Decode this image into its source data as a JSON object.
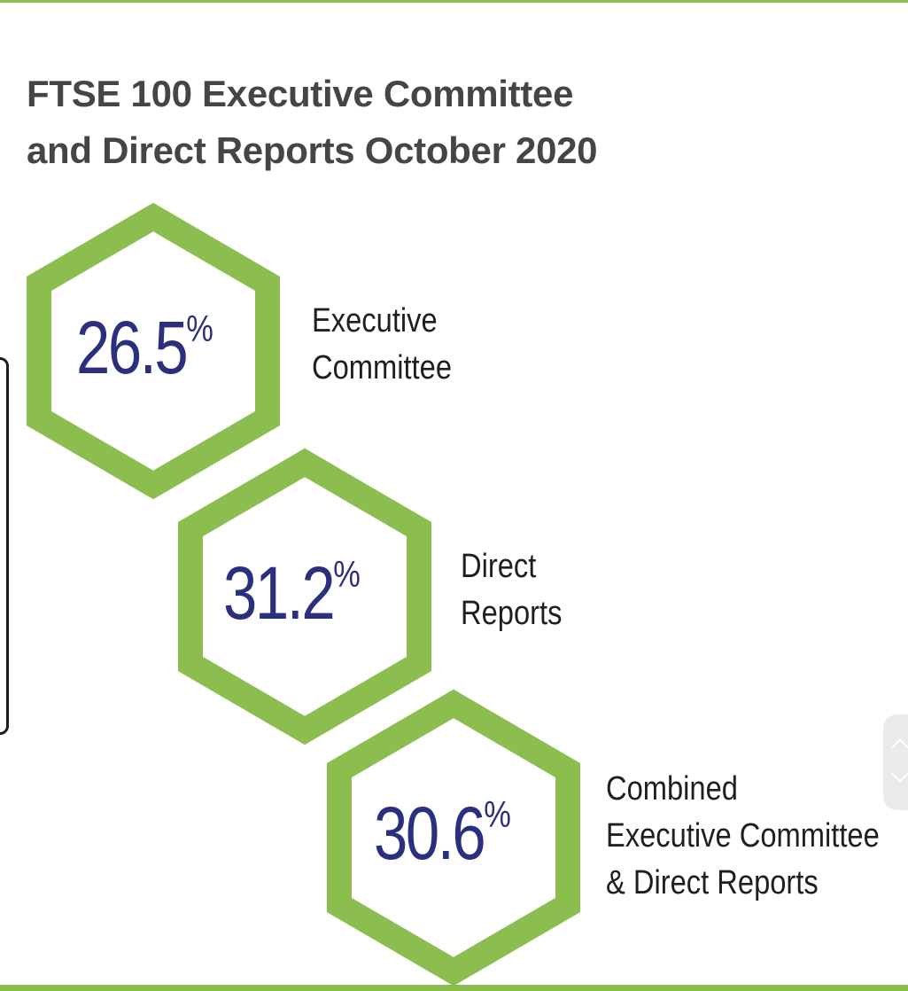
{
  "title": {
    "line1": "FTSE 100 Executive Committee",
    "line2": "and Direct Reports October 2020"
  },
  "stats": [
    {
      "value": "26.5",
      "unit": "%",
      "label_lines": [
        "Executive",
        "Committee"
      ]
    },
    {
      "value": "31.2",
      "unit": "%",
      "label_lines": [
        "Direct",
        "Reports"
      ]
    },
    {
      "value": "30.6",
      "unit": "%",
      "label_lines": [
        "Combined",
        "Executive Committee",
        "& Direct Reports"
      ]
    }
  ],
  "colors": {
    "accent_green": "#8bbd4f",
    "number_blue": "#2a2f7e",
    "title_gray": "#454545"
  }
}
